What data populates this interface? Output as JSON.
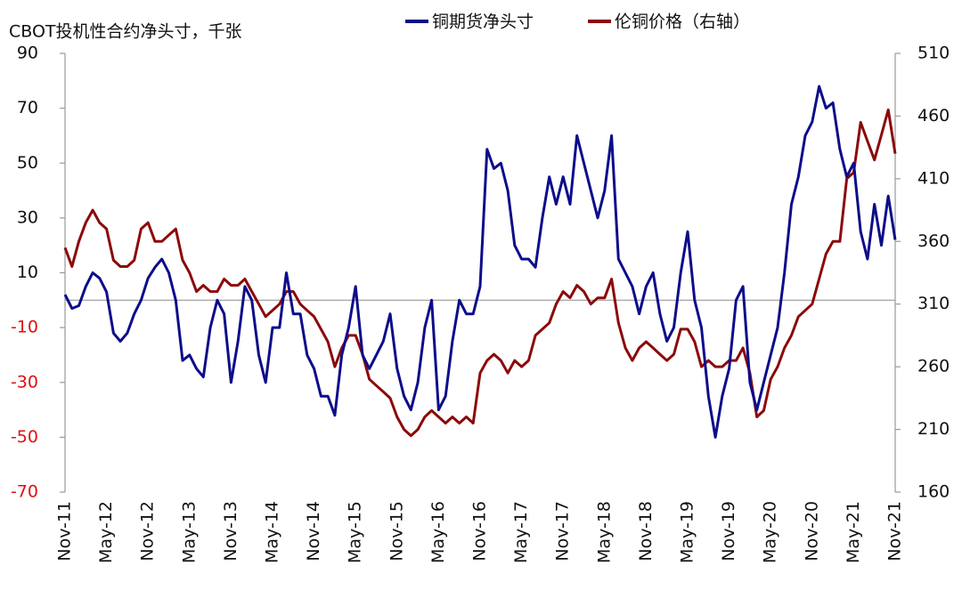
{
  "chart_data": {
    "type": "line",
    "title": "CBOT投机性合约净头寸，千张",
    "x": [
      "Nov-11",
      null,
      null,
      null,
      null,
      null,
      "May-12",
      null,
      null,
      null,
      null,
      null,
      "Nov-12",
      null,
      null,
      null,
      null,
      null,
      "May-13",
      null,
      null,
      null,
      null,
      null,
      "Nov-13",
      null,
      null,
      null,
      null,
      null,
      "May-14",
      null,
      null,
      null,
      null,
      null,
      "Nov-14",
      null,
      null,
      null,
      null,
      null,
      "May-15",
      null,
      null,
      null,
      null,
      null,
      "Nov-15",
      null,
      null,
      null,
      null,
      null,
      "May-16",
      null,
      null,
      null,
      null,
      null,
      "Nov-16",
      null,
      null,
      null,
      null,
      null,
      "May-17",
      null,
      null,
      null,
      null,
      null,
      "Nov-17",
      null,
      null,
      null,
      null,
      null,
      "May-18",
      null,
      null,
      null,
      null,
      null,
      "Nov-18",
      null,
      null,
      null,
      null,
      null,
      "May-19",
      null,
      null,
      null,
      null,
      null,
      "Nov-19",
      null,
      null,
      null,
      null,
      null,
      "May-20",
      null,
      null,
      null,
      null,
      null,
      "Nov-20",
      null,
      null,
      null,
      null,
      null,
      "May-21",
      null,
      null,
      null,
      null,
      null,
      "Nov-21"
    ],
    "series": [
      {
        "name": "铜期货净头寸",
        "color": "#0d0d8a",
        "axis": "y",
        "values": [
          2,
          -3,
          -2,
          5,
          10,
          8,
          3,
          -12,
          -15,
          -12,
          -5,
          0,
          8,
          12,
          15,
          10,
          0,
          -22,
          -20,
          -25,
          -28,
          -10,
          0,
          -5,
          -30,
          -15,
          5,
          0,
          -20,
          -30,
          -10,
          -10,
          10,
          -5,
          -5,
          -20,
          -25,
          -35,
          -35,
          -42,
          -20,
          -10,
          5,
          -20,
          -25,
          -20,
          -15,
          -5,
          -25,
          -35,
          -40,
          -30,
          -10,
          0,
          -40,
          -35,
          -15,
          0,
          -5,
          -5,
          5,
          55,
          48,
          50,
          40,
          20,
          15,
          15,
          12,
          30,
          45,
          35,
          45,
          35,
          60,
          50,
          40,
          30,
          40,
          60,
          15,
          10,
          5,
          -5,
          5,
          10,
          -5,
          -15,
          -10,
          10,
          25,
          0,
          -10,
          -35,
          -50,
          -35,
          -25,
          0,
          5,
          -30,
          -40,
          -30,
          -20,
          -10,
          10,
          35,
          45,
          60,
          65,
          78,
          70,
          72,
          55,
          45,
          50,
          25,
          15,
          35,
          20,
          38,
          22
        ]
      },
      {
        "name": "伦铜价格（右轴）",
        "color": "#8b0a0a",
        "axis": "y2",
        "values": [
          355,
          340,
          360,
          375,
          385,
          375,
          370,
          345,
          340,
          340,
          345,
          370,
          375,
          360,
          360,
          365,
          370,
          345,
          335,
          320,
          325,
          320,
          320,
          330,
          325,
          325,
          330,
          320,
          310,
          300,
          305,
          310,
          320,
          320,
          310,
          305,
          300,
          290,
          280,
          260,
          275,
          285,
          285,
          270,
          250,
          245,
          240,
          235,
          220,
          210,
          205,
          210,
          220,
          225,
          220,
          215,
          220,
          215,
          220,
          215,
          255,
          265,
          270,
          265,
          255,
          265,
          260,
          265,
          285,
          290,
          295,
          310,
          320,
          315,
          325,
          320,
          310,
          315,
          315,
          330,
          295,
          275,
          265,
          275,
          280,
          275,
          270,
          265,
          270,
          290,
          290,
          280,
          260,
          265,
          260,
          260,
          265,
          265,
          275,
          255,
          220,
          225,
          250,
          260,
          275,
          285,
          300,
          305,
          310,
          330,
          350,
          360,
          360,
          410,
          415,
          455,
          440,
          425,
          445,
          465,
          430
        ]
      }
    ],
    "ylim": [
      -70,
      90
    ],
    "yticks": [
      -70,
      -50,
      -30,
      -10,
      10,
      30,
      50,
      70,
      90
    ],
    "y2lim": [
      160,
      510
    ],
    "y2ticks": [
      160,
      210,
      260,
      310,
      360,
      410,
      460,
      510
    ],
    "negative_tick_color": "#e01010",
    "legend": "top"
  }
}
